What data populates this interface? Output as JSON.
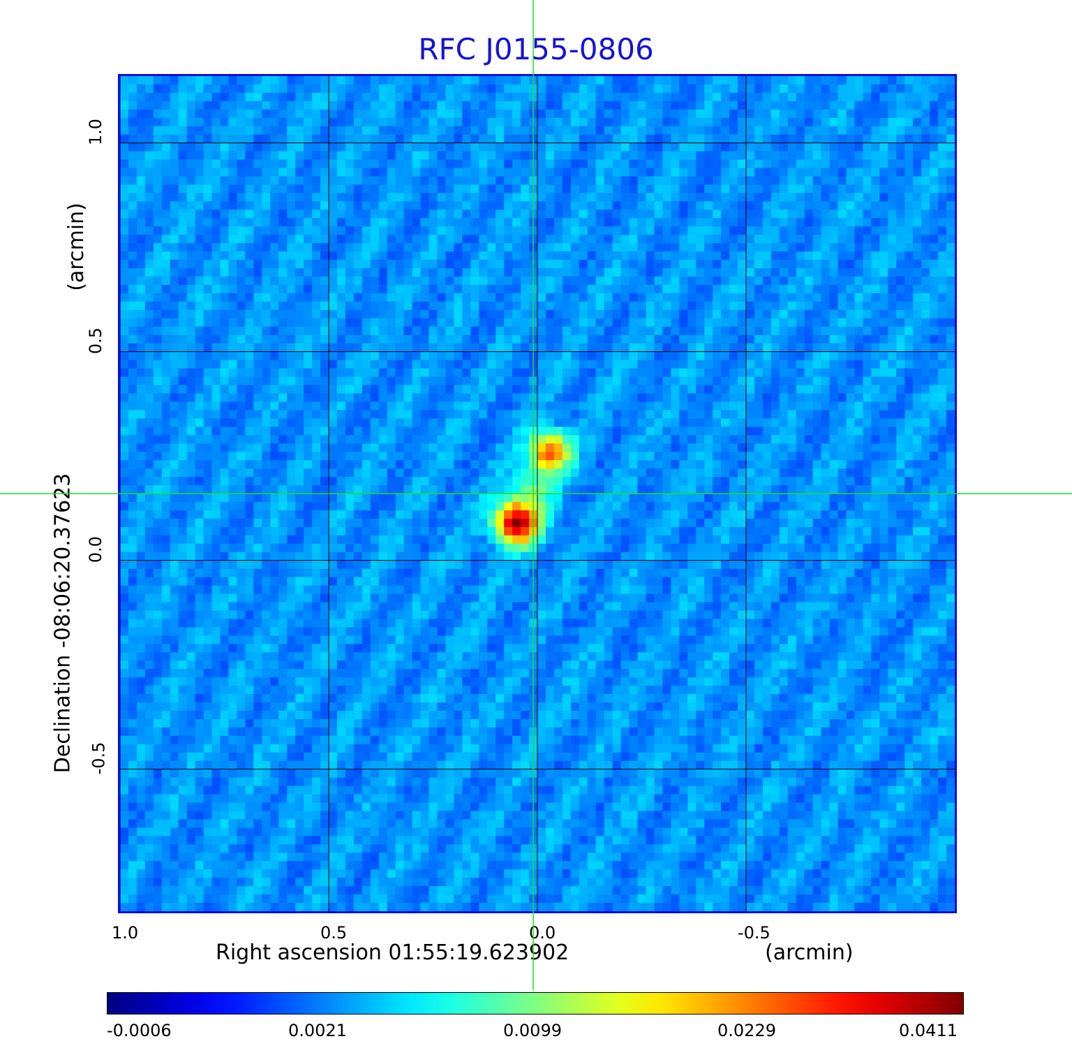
{
  "chart_data": {
    "type": "heatmap",
    "title": "RFC J0155-0806",
    "xlabel": "Right ascension  01:55:19.623902",
    "xunit": "(arcmin)",
    "ylabel": "Declination  -08:06:20.37623",
    "yunit": "(arcmin)",
    "x_ticks": [
      "1.0",
      "0.5",
      "0.0",
      "-0.5"
    ],
    "y_ticks": [
      "1.0",
      "0.5",
      "0.0",
      "-0.5"
    ],
    "x_tick_values": [
      1.0,
      0.5,
      0.0,
      -0.5
    ],
    "y_tick_values": [
      1.0,
      0.5,
      0.0,
      -0.5
    ],
    "xlim": [
      1.0,
      -1.0
    ],
    "ylim": [
      -0.84,
      1.16
    ],
    "grid": true,
    "crosshair": {
      "x": 0.01,
      "y": 0.16
    },
    "sources": [
      {
        "x": 0.05,
        "y": 0.09,
        "peak": 0.0411
      },
      {
        "x": -0.03,
        "y": 0.26,
        "peak": 0.028
      }
    ],
    "colorbar": {
      "colormap": "jet",
      "ticks": [
        "-0.0006",
        "0.0021",
        "0.0099",
        "0.0229",
        "0.0411"
      ]
    }
  },
  "colors": {
    "title": "#1414d4",
    "background_map": "#1a5cf2",
    "grid": "#000000",
    "crosshair": "#22dd22"
  }
}
